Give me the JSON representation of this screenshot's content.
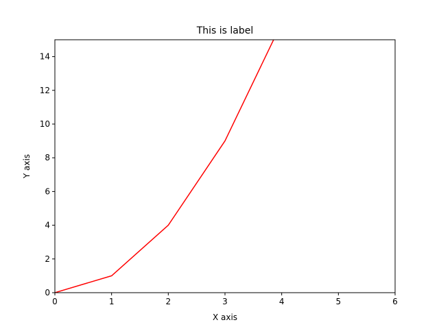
{
  "chart_data": {
    "type": "line",
    "title": "This is label",
    "xlabel": "X axis",
    "ylabel": "Y axis",
    "xlim": [
      0,
      6
    ],
    "ylim": [
      0,
      15
    ],
    "xticks": [
      0,
      1,
      2,
      3,
      4,
      5,
      6
    ],
    "yticks": [
      0,
      2,
      4,
      6,
      8,
      10,
      12,
      14
    ],
    "grid": false,
    "series": [
      {
        "color": "#ff0000",
        "x": [
          0,
          1,
          2,
          3,
          4
        ],
        "y": [
          0,
          1,
          4,
          9,
          16
        ]
      }
    ]
  }
}
